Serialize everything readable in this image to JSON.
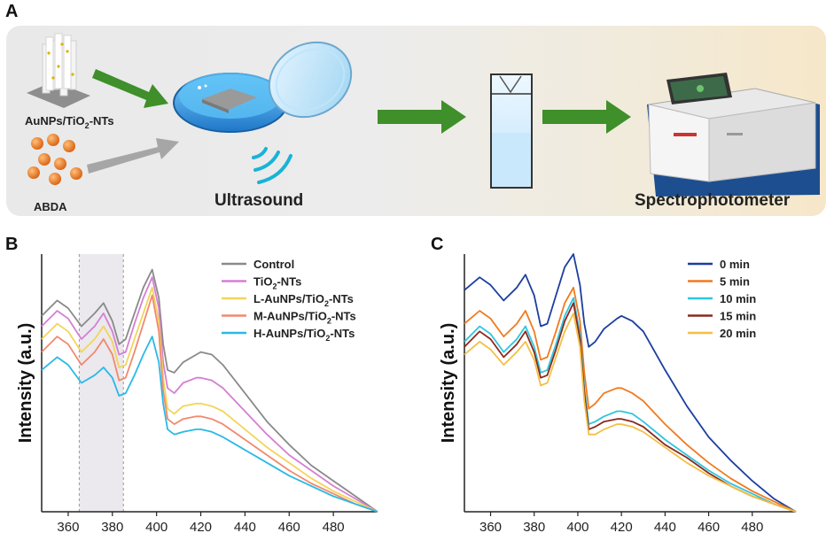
{
  "panel_a": {
    "label": "A",
    "sample_label_main": "AuNPs/TiO",
    "sample_label_sub": "2",
    "sample_label_tail": "-NTs",
    "reagent_label": "ABDA",
    "ultrasound_label": "Ultrasound",
    "instrument_label": "Spectrophotometer",
    "colors": {
      "arrow_green": "#3f8f2a",
      "arrow_gray": "#a6a6a6",
      "dish_blue": "#2e8fd8",
      "particle_orange": "#e8761f"
    }
  },
  "panel_b": {
    "label": "B"
  },
  "panel_c": {
    "label": "C"
  },
  "chart_data": [
    {
      "type": "line",
      "panel": "B",
      "ylabel": "Intensity (a.u.)",
      "xlabel": "",
      "xlim": [
        348,
        500
      ],
      "ylim": [
        0,
        1
      ],
      "xticks": [
        360,
        380,
        400,
        420,
        440,
        460,
        480
      ],
      "highlight_band": [
        365,
        385
      ],
      "x": [
        348,
        355,
        360,
        366,
        372,
        376,
        380,
        383,
        386,
        390,
        394,
        398,
        401,
        403,
        405,
        408,
        412,
        418,
        420,
        425,
        430,
        440,
        450,
        460,
        470,
        480,
        490,
        500
      ],
      "series": [
        {
          "name": "Control",
          "sub": "",
          "tail": "",
          "color": "#8a8a8a",
          "values": [
            0.76,
            0.82,
            0.79,
            0.72,
            0.77,
            0.81,
            0.74,
            0.65,
            0.67,
            0.77,
            0.87,
            0.94,
            0.83,
            0.65,
            0.55,
            0.54,
            0.58,
            0.61,
            0.62,
            0.61,
            0.57,
            0.46,
            0.35,
            0.26,
            0.18,
            0.12,
            0.06,
            0.0
          ]
        },
        {
          "name": "TiO",
          "sub": "2",
          "tail": "-NTs",
          "color": "#d57fd4",
          "values": [
            0.72,
            0.78,
            0.75,
            0.67,
            0.72,
            0.77,
            0.7,
            0.61,
            0.62,
            0.73,
            0.83,
            0.91,
            0.79,
            0.58,
            0.48,
            0.46,
            0.5,
            0.52,
            0.52,
            0.51,
            0.48,
            0.39,
            0.3,
            0.22,
            0.16,
            0.1,
            0.05,
            0.0
          ]
        },
        {
          "name": "L-AuNPs/TiO",
          "sub": "2",
          "tail": "-NTs",
          "color": "#f2d55a",
          "values": [
            0.67,
            0.73,
            0.7,
            0.62,
            0.67,
            0.72,
            0.66,
            0.56,
            0.57,
            0.67,
            0.77,
            0.87,
            0.74,
            0.52,
            0.4,
            0.38,
            0.41,
            0.42,
            0.42,
            0.41,
            0.39,
            0.32,
            0.25,
            0.19,
            0.13,
            0.08,
            0.04,
            0.0
          ]
        },
        {
          "name": "M-AuNPs/TiO",
          "sub": "2",
          "tail": "-NTs",
          "color": "#f08a6e",
          "values": [
            0.62,
            0.68,
            0.65,
            0.57,
            0.62,
            0.67,
            0.61,
            0.51,
            0.52,
            0.62,
            0.73,
            0.84,
            0.7,
            0.47,
            0.36,
            0.34,
            0.36,
            0.37,
            0.37,
            0.36,
            0.34,
            0.28,
            0.22,
            0.16,
            0.11,
            0.07,
            0.03,
            0.0
          ]
        },
        {
          "name": "H-AuNPs/TiO",
          "sub": "2",
          "tail": "-NTs",
          "color": "#29b9e6",
          "values": [
            0.55,
            0.6,
            0.57,
            0.5,
            0.53,
            0.56,
            0.52,
            0.45,
            0.46,
            0.53,
            0.61,
            0.68,
            0.58,
            0.42,
            0.32,
            0.3,
            0.31,
            0.32,
            0.32,
            0.31,
            0.29,
            0.24,
            0.19,
            0.14,
            0.1,
            0.06,
            0.03,
            0.0
          ]
        }
      ]
    },
    {
      "type": "line",
      "panel": "C",
      "ylabel": "Intensity (a.u.)",
      "xlabel": "",
      "xlim": [
        348,
        500
      ],
      "ylim": [
        0,
        1
      ],
      "xticks": [
        360,
        380,
        400,
        420,
        440,
        460,
        480
      ],
      "x": [
        348,
        355,
        360,
        366,
        372,
        376,
        380,
        383,
        386,
        390,
        394,
        398,
        401,
        403,
        405,
        408,
        412,
        418,
        420,
        425,
        430,
        440,
        450,
        460,
        470,
        480,
        490,
        500
      ],
      "series": [
        {
          "name": "0 min",
          "color": "#1b3ea0",
          "values": [
            0.86,
            0.91,
            0.88,
            0.82,
            0.87,
            0.92,
            0.84,
            0.72,
            0.73,
            0.84,
            0.95,
            1.0,
            0.88,
            0.73,
            0.64,
            0.66,
            0.71,
            0.75,
            0.76,
            0.74,
            0.7,
            0.55,
            0.41,
            0.29,
            0.2,
            0.12,
            0.05,
            0.0
          ]
        },
        {
          "name": "5 min",
          "color": "#f07a1e",
          "values": [
            0.73,
            0.78,
            0.75,
            0.68,
            0.73,
            0.78,
            0.7,
            0.59,
            0.6,
            0.7,
            0.81,
            0.87,
            0.74,
            0.54,
            0.4,
            0.42,
            0.46,
            0.48,
            0.48,
            0.46,
            0.43,
            0.34,
            0.26,
            0.19,
            0.13,
            0.08,
            0.04,
            0.0
          ]
        },
        {
          "name": "10 min",
          "color": "#2fc5e0",
          "values": [
            0.66,
            0.72,
            0.69,
            0.62,
            0.67,
            0.72,
            0.64,
            0.54,
            0.55,
            0.65,
            0.76,
            0.83,
            0.69,
            0.48,
            0.34,
            0.35,
            0.37,
            0.39,
            0.39,
            0.38,
            0.35,
            0.28,
            0.22,
            0.16,
            0.11,
            0.07,
            0.03,
            0.0
          ]
        },
        {
          "name": "15 min",
          "color": "#8b2a1e",
          "values": [
            0.64,
            0.7,
            0.67,
            0.6,
            0.65,
            0.7,
            0.62,
            0.52,
            0.53,
            0.63,
            0.74,
            0.81,
            0.67,
            0.46,
            0.32,
            0.33,
            0.35,
            0.36,
            0.36,
            0.35,
            0.33,
            0.26,
            0.21,
            0.15,
            0.1,
            0.06,
            0.03,
            0.0
          ]
        },
        {
          "name": "20 min",
          "color": "#f3bf45",
          "values": [
            0.61,
            0.66,
            0.63,
            0.57,
            0.62,
            0.66,
            0.59,
            0.49,
            0.5,
            0.6,
            0.7,
            0.77,
            0.64,
            0.43,
            0.3,
            0.3,
            0.32,
            0.34,
            0.34,
            0.33,
            0.31,
            0.25,
            0.19,
            0.14,
            0.1,
            0.06,
            0.03,
            0.0
          ]
        }
      ]
    }
  ]
}
